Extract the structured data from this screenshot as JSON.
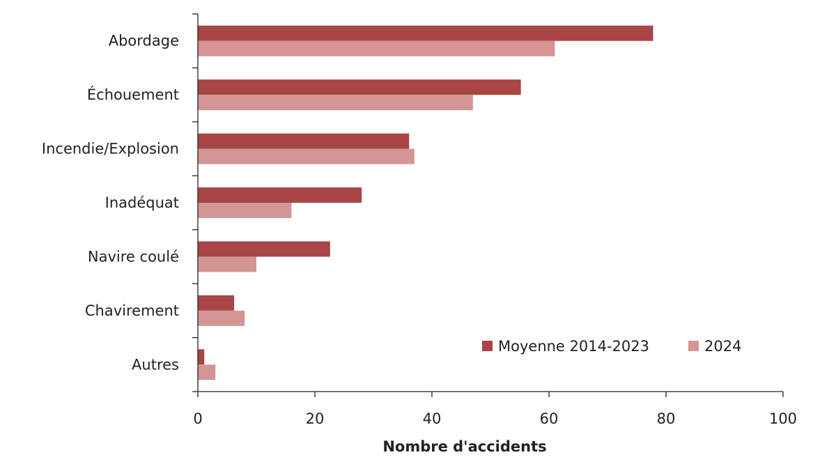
{
  "chart_data": {
    "type": "bar",
    "orientation": "horizontal",
    "categories": [
      "Abordage",
      "Échouement",
      "Incendie/Explosion",
      "Inadéquat ",
      "Navire coulé",
      "Chavirement",
      "Autres"
    ],
    "series": [
      {
        "name": "Moyenne 2014-2023",
        "color": "#a84545",
        "values": [
          77.8,
          55.2,
          36.1,
          28,
          22.6,
          6.2,
          1.1
        ]
      },
      {
        "name": "2024",
        "color": "#d49595",
        "values": [
          61,
          47,
          37,
          16,
          10,
          8,
          3
        ]
      }
    ],
    "xlabel": "Nombre d'accidents",
    "ylabel": "",
    "xlim": [
      0,
      100
    ],
    "xticks": [
      0,
      20,
      40,
      60,
      80,
      100
    ],
    "grid": false,
    "legend_position": "bottom-right"
  }
}
